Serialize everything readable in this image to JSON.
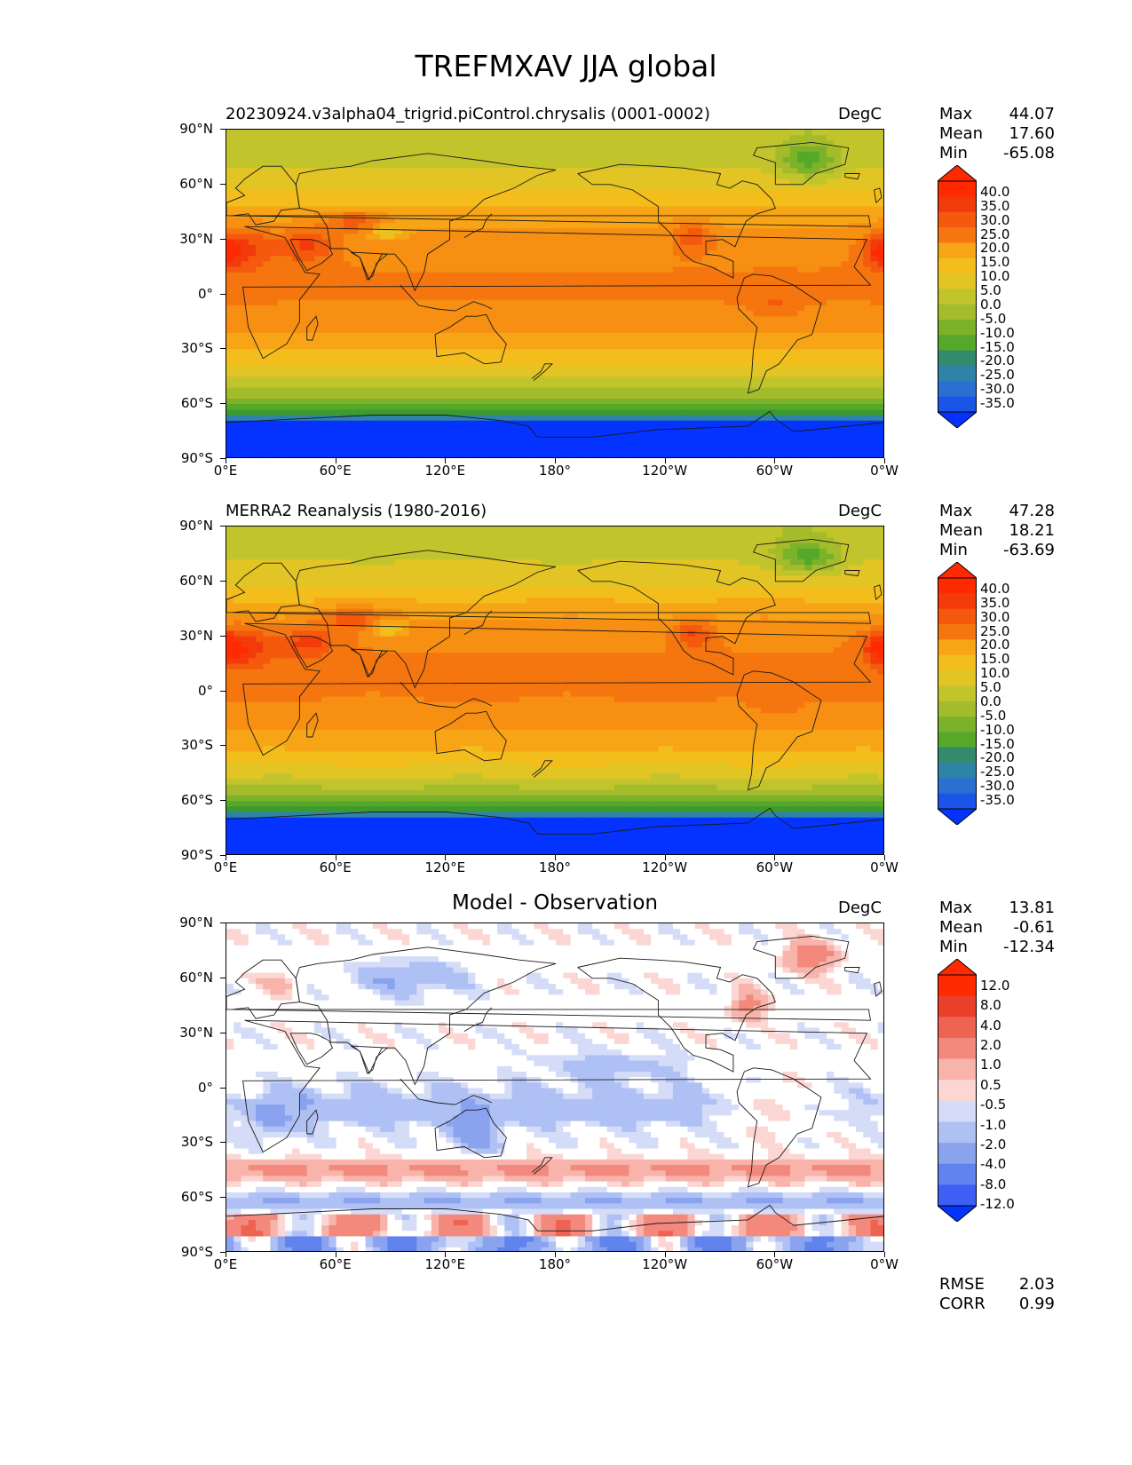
{
  "figure": {
    "title": "TREFMXAV JJA global"
  },
  "panels": [
    {
      "id": "model",
      "title_left": "20230924.v3alpha04_trigrid.piControl.chrysalis (0001-0002)",
      "title_center": "",
      "units": "DegC",
      "stats": [
        {
          "label": "Max",
          "value": "44.07"
        },
        {
          "label": "Mean",
          "value": "17.60"
        },
        {
          "label": "Min",
          "value": "-65.08"
        }
      ],
      "colorbar_ticks": [
        "40.0",
        "35.0",
        "30.0",
        "25.0",
        "20.0",
        "15.0",
        "10.0",
        "5.0",
        "0.0",
        "-5.0",
        "-10.0",
        "-15.0",
        "-20.0",
        "-25.0",
        "-30.0",
        "-35.0"
      ]
    },
    {
      "id": "obs",
      "title_left": "MERRA2 Reanalysis (1980-2016)",
      "title_center": "",
      "units": "DegC",
      "stats": [
        {
          "label": "Max",
          "value": "47.28"
        },
        {
          "label": "Mean",
          "value": "18.21"
        },
        {
          "label": "Min",
          "value": "-63.69"
        }
      ],
      "colorbar_ticks": [
        "40.0",
        "35.0",
        "30.0",
        "25.0",
        "20.0",
        "15.0",
        "10.0",
        "5.0",
        "0.0",
        "-5.0",
        "-10.0",
        "-15.0",
        "-20.0",
        "-25.0",
        "-30.0",
        "-35.0"
      ]
    },
    {
      "id": "diff",
      "title_left": "",
      "title_center": "Model - Observation",
      "units": "DegC",
      "stats": [
        {
          "label": "Max",
          "value": "13.81"
        },
        {
          "label": "Mean",
          "value": "-0.61"
        },
        {
          "label": "Min",
          "value": "-12.34"
        }
      ],
      "colorbar_ticks": [
        "12.0",
        "8.0",
        "4.0",
        "2.0",
        "1.0",
        "0.5",
        "-0.5",
        "-1.0",
        "-2.0",
        "-4.0",
        "-8.0",
        "-12.0"
      ],
      "extra_stats": [
        {
          "label": "RMSE",
          "value": "2.03"
        },
        {
          "label": "CORR",
          "value": "0.99"
        }
      ]
    }
  ],
  "axes": {
    "lat_labels": [
      "90°N",
      "60°N",
      "30°N",
      "0°",
      "30°S",
      "60°S",
      "90°S"
    ],
    "lon_labels": [
      "0°E",
      "60°E",
      "120°E",
      "180°",
      "120°W",
      "60°W",
      "0°W"
    ]
  },
  "colors": {
    "temp_scale": [
      "#0433ff",
      "#1b55e8",
      "#2b6fd0",
      "#2e83a8",
      "#338a6c",
      "#3d9a2e",
      "#55a829",
      "#7cb22a",
      "#a4bc2b",
      "#c2c42c",
      "#e2c425",
      "#f3be1c",
      "#f7a416",
      "#f68f12",
      "#f5750f",
      "#f4590d",
      "#f23a0a",
      "#ff2a00"
    ],
    "diff_scale": [
      "#0433ff",
      "#3d5ff5",
      "#6183ee",
      "#8aa3ee",
      "#afc1f4",
      "#d4dcf8",
      "#ffffff",
      "#fbd6d2",
      "#f8b3ab",
      "#f3897c",
      "#ee6351",
      "#ea3f2b",
      "#ff2a00"
    ]
  },
  "chart_data": [
    {
      "type": "heatmap",
      "title": "20230924.v3alpha04_trigrid.piControl.chrysalis (0001-0002)",
      "units": "DegC",
      "xlim": [
        0,
        360
      ],
      "ylim": [
        -90,
        90
      ],
      "zonal_profile": {
        "lat": [
          90,
          75,
          60,
          45,
          30,
          15,
          0,
          -15,
          -30,
          -45,
          -60,
          -75,
          -90
        ],
        "value": [
          3,
          6,
          10,
          18,
          24,
          26,
          27,
          24,
          17,
          8,
          -5,
          -40,
          -55
        ]
      },
      "stats": {
        "max": 44.07,
        "mean": 17.6,
        "min": -65.08
      }
    },
    {
      "type": "heatmap",
      "title": "MERRA2 Reanalysis (1980-2016)",
      "units": "DegC",
      "xlim": [
        0,
        360
      ],
      "ylim": [
        -90,
        90
      ],
      "zonal_profile": {
        "lat": [
          90,
          75,
          60,
          45,
          30,
          15,
          0,
          -15,
          -30,
          -45,
          -60,
          -75,
          -90
        ],
        "value": [
          3,
          6,
          11,
          19,
          25,
          27,
          27,
          24,
          18,
          9,
          -4,
          -40,
          -55
        ]
      },
      "stats": {
        "max": 47.28,
        "mean": 18.21,
        "min": -63.69
      }
    },
    {
      "type": "heatmap",
      "title": "Model - Observation",
      "units": "DegC",
      "xlim": [
        0,
        360
      ],
      "ylim": [
        -90,
        90
      ],
      "stats": {
        "max": 13.81,
        "mean": -0.61,
        "min": -12.34,
        "rmse": 2.03,
        "corr": 0.99
      }
    }
  ]
}
